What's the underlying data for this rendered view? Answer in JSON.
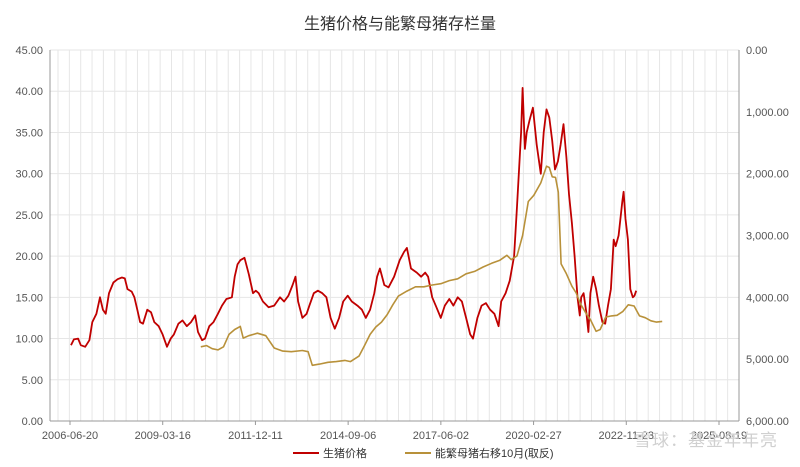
{
  "chart_data": {
    "type": "line",
    "title": "生猪价格与能繁母猪存栏量",
    "x_tick_labels": [
      "2006-06-20",
      "2009-03-16",
      "2011-12-11",
      "2014-09-06",
      "2017-06-02",
      "2020-02-27",
      "2022-11-23",
      "2025-08-19"
    ],
    "x_range": [
      "2006-06-20",
      "2025-08-19"
    ],
    "y_left": {
      "range": [
        0,
        45
      ],
      "ticks": [
        "0.00",
        "5.00",
        "10.00",
        "15.00",
        "20.00",
        "25.00",
        "30.00",
        "35.00",
        "40.00",
        "45.00"
      ]
    },
    "y_right": {
      "range": [
        0,
        6000
      ],
      "inverted": true,
      "ticks": [
        "0.00",
        "1,000.00",
        "2,000.00",
        "3,000.00",
        "4,000.00",
        "5,000.00",
        "6,000.00"
      ]
    },
    "grid": true,
    "legend_position": "bottom",
    "series": [
      {
        "name": "生猪价格",
        "axis": "left",
        "color": "#c00000",
        "points": [
          [
            "2006-07-01",
            9.2
          ],
          [
            "2006-08-01",
            9.9
          ],
          [
            "2006-09-15",
            10.0
          ],
          [
            "2006-10-15",
            9.2
          ],
          [
            "2006-12-01",
            9.0
          ],
          [
            "2007-01-15",
            9.8
          ],
          [
            "2007-02-15",
            12.0
          ],
          [
            "2007-04-01",
            13.0
          ],
          [
            "2007-05-10",
            15.0
          ],
          [
            "2007-06-10",
            13.5
          ],
          [
            "2007-07-10",
            13.0
          ],
          [
            "2007-08-15",
            15.5
          ],
          [
            "2007-10-01",
            16.8
          ],
          [
            "2007-11-15",
            17.2
          ],
          [
            "2008-01-01",
            17.4
          ],
          [
            "2008-02-01",
            17.3
          ],
          [
            "2008-03-01",
            16.0
          ],
          [
            "2008-04-15",
            15.7
          ],
          [
            "2008-05-15",
            15.0
          ],
          [
            "2008-06-15",
            13.5
          ],
          [
            "2008-07-15",
            12.0
          ],
          [
            "2008-08-15",
            11.8
          ],
          [
            "2008-10-01",
            13.5
          ],
          [
            "2008-11-10",
            13.2
          ],
          [
            "2008-12-15",
            12.0
          ],
          [
            "2009-02-01",
            11.5
          ],
          [
            "2009-03-15",
            10.5
          ],
          [
            "2009-05-01",
            9.0
          ],
          [
            "2009-06-10",
            10.0
          ],
          [
            "2009-07-15",
            10.5
          ],
          [
            "2009-09-01",
            11.8
          ],
          [
            "2009-10-15",
            12.2
          ],
          [
            "2009-12-01",
            11.5
          ],
          [
            "2010-01-15",
            12.0
          ],
          [
            "2010-03-01",
            12.8
          ],
          [
            "2010-04-01",
            10.8
          ],
          [
            "2010-05-15",
            9.8
          ],
          [
            "2010-06-15",
            10.0
          ],
          [
            "2010-08-01",
            11.5
          ],
          [
            "2010-09-15",
            12.0
          ],
          [
            "2010-11-01",
            13.0
          ],
          [
            "2010-12-15",
            14.0
          ],
          [
            "2011-02-01",
            14.8
          ],
          [
            "2011-04-01",
            15.0
          ],
          [
            "2011-05-01",
            17.5
          ],
          [
            "2011-06-01",
            19.0
          ],
          [
            "2011-07-01",
            19.5
          ],
          [
            "2011-08-15",
            19.8
          ],
          [
            "2011-10-01",
            17.8
          ],
          [
            "2011-11-15",
            15.5
          ],
          [
            "2011-12-15",
            15.8
          ],
          [
            "2012-01-15",
            15.5
          ],
          [
            "2012-03-01",
            14.5
          ],
          [
            "2012-05-01",
            13.8
          ],
          [
            "2012-07-01",
            14.0
          ],
          [
            "2012-09-01",
            15.0
          ],
          [
            "2012-10-15",
            14.5
          ],
          [
            "2012-12-01",
            15.2
          ],
          [
            "2013-01-15",
            16.5
          ],
          [
            "2013-02-15",
            17.5
          ],
          [
            "2013-03-15",
            14.5
          ],
          [
            "2013-05-01",
            12.5
          ],
          [
            "2013-06-15",
            13.0
          ],
          [
            "2013-07-15",
            14.0
          ],
          [
            "2013-09-01",
            15.5
          ],
          [
            "2013-10-15",
            15.8
          ],
          [
            "2013-12-01",
            15.5
          ],
          [
            "2014-01-15",
            15.0
          ],
          [
            "2014-03-01",
            12.5
          ],
          [
            "2014-04-15",
            11.2
          ],
          [
            "2014-06-01",
            12.5
          ],
          [
            "2014-07-15",
            14.5
          ],
          [
            "2014-09-01",
            15.2
          ],
          [
            "2014-10-15",
            14.5
          ],
          [
            "2014-12-15",
            14.0
          ],
          [
            "2015-02-01",
            13.5
          ],
          [
            "2015-03-15",
            12.5
          ],
          [
            "2015-05-01",
            13.5
          ],
          [
            "2015-06-15",
            15.5
          ],
          [
            "2015-07-15",
            17.5
          ],
          [
            "2015-08-15",
            18.5
          ],
          [
            "2015-10-01",
            16.5
          ],
          [
            "2015-11-15",
            16.2
          ],
          [
            "2016-01-15",
            17.5
          ],
          [
            "2016-03-15",
            19.5
          ],
          [
            "2016-05-01",
            20.5
          ],
          [
            "2016-06-01",
            21.0
          ],
          [
            "2016-07-15",
            18.5
          ],
          [
            "2016-09-15",
            18.0
          ],
          [
            "2016-11-01",
            17.5
          ],
          [
            "2016-12-15",
            18.0
          ],
          [
            "2017-01-15",
            17.5
          ],
          [
            "2017-03-01",
            15.0
          ],
          [
            "2017-04-15",
            13.8
          ],
          [
            "2017-06-01",
            12.5
          ],
          [
            "2017-07-15",
            14.0
          ],
          [
            "2017-09-01",
            14.8
          ],
          [
            "2017-10-15",
            14.0
          ],
          [
            "2017-12-01",
            15.0
          ],
          [
            "2018-01-15",
            14.5
          ],
          [
            "2018-03-01",
            12.5
          ],
          [
            "2018-04-15",
            10.5
          ],
          [
            "2018-05-15",
            10.0
          ],
          [
            "2018-07-01",
            12.5
          ],
          [
            "2018-08-15",
            14.0
          ],
          [
            "2018-10-01",
            14.3
          ],
          [
            "2018-11-15",
            13.5
          ],
          [
            "2019-01-01",
            13.0
          ],
          [
            "2019-02-15",
            11.5
          ],
          [
            "2019-03-15",
            14.5
          ],
          [
            "2019-05-01",
            15.5
          ],
          [
            "2019-06-15",
            17.0
          ],
          [
            "2019-08-01",
            20.0
          ],
          [
            "2019-09-01",
            26.0
          ],
          [
            "2019-10-15",
            35.0
          ],
          [
            "2019-11-01",
            40.4
          ],
          [
            "2019-11-25",
            33.0
          ],
          [
            "2019-12-15",
            35.0
          ],
          [
            "2020-01-15",
            36.5
          ],
          [
            "2020-02-20",
            38.0
          ],
          [
            "2020-04-01",
            33.5
          ],
          [
            "2020-05-15",
            30.0
          ],
          [
            "2020-06-15",
            35.0
          ],
          [
            "2020-07-15",
            37.8
          ],
          [
            "2020-08-15",
            36.8
          ],
          [
            "2020-09-15",
            34.0
          ],
          [
            "2020-10-15",
            30.5
          ],
          [
            "2020-11-15",
            31.5
          ],
          [
            "2020-12-15",
            33.5
          ],
          [
            "2021-01-15",
            36.0
          ],
          [
            "2021-02-15",
            32.0
          ],
          [
            "2021-03-15",
            27.5
          ],
          [
            "2021-04-15",
            24.0
          ],
          [
            "2021-05-15",
            20.0
          ],
          [
            "2021-06-15",
            15.0
          ],
          [
            "2021-07-10",
            12.8
          ],
          [
            "2021-07-25",
            15.0
          ],
          [
            "2021-08-20",
            15.5
          ],
          [
            "2021-09-20",
            13.0
          ],
          [
            "2021-10-10",
            10.8
          ],
          [
            "2021-11-01",
            15.5
          ],
          [
            "2021-12-01",
            17.5
          ],
          [
            "2022-01-01",
            16.0
          ],
          [
            "2022-02-01",
            14.0
          ],
          [
            "2022-03-10",
            12.0
          ],
          [
            "2022-04-10",
            11.8
          ],
          [
            "2022-05-10",
            14.0
          ],
          [
            "2022-06-10",
            16.0
          ],
          [
            "2022-07-10",
            22.0
          ],
          [
            "2022-08-01",
            21.2
          ],
          [
            "2022-09-01",
            22.5
          ],
          [
            "2022-10-10",
            26.5
          ],
          [
            "2022-10-25",
            27.8
          ],
          [
            "2022-11-15",
            24.5
          ],
          [
            "2022-12-10",
            22.0
          ],
          [
            "2023-01-05",
            16.0
          ],
          [
            "2023-02-01",
            15.0
          ],
          [
            "2023-02-20",
            15.2
          ],
          [
            "2023-03-10",
            15.8
          ]
        ]
      },
      {
        "name": "能繁母猪右移10月(取反)",
        "axis": "right",
        "color": "#b8913a",
        "points": [
          [
            "2010-05-01",
            4800
          ],
          [
            "2010-07-01",
            4780
          ],
          [
            "2010-09-01",
            4830
          ],
          [
            "2010-11-01",
            4850
          ],
          [
            "2011-01-01",
            4800
          ],
          [
            "2011-03-01",
            4600
          ],
          [
            "2011-05-01",
            4520
          ],
          [
            "2011-07-01",
            4470
          ],
          [
            "2011-08-01",
            4660
          ],
          [
            "2011-10-01",
            4620
          ],
          [
            "2012-01-01",
            4580
          ],
          [
            "2012-04-01",
            4620
          ],
          [
            "2012-07-01",
            4820
          ],
          [
            "2012-10-01",
            4870
          ],
          [
            "2013-01-01",
            4880
          ],
          [
            "2013-05-01",
            4860
          ],
          [
            "2013-07-01",
            4880
          ],
          [
            "2013-08-15",
            5100
          ],
          [
            "2013-11-01",
            5080
          ],
          [
            "2014-02-01",
            5050
          ],
          [
            "2014-05-01",
            5040
          ],
          [
            "2014-08-01",
            5020
          ],
          [
            "2014-10-01",
            5040
          ],
          [
            "2015-01-01",
            4950
          ],
          [
            "2015-03-01",
            4780
          ],
          [
            "2015-05-01",
            4600
          ],
          [
            "2015-07-01",
            4480
          ],
          [
            "2015-09-01",
            4400
          ],
          [
            "2015-11-01",
            4280
          ],
          [
            "2016-01-01",
            4120
          ],
          [
            "2016-03-01",
            3980
          ],
          [
            "2016-06-01",
            3900
          ],
          [
            "2016-09-01",
            3830
          ],
          [
            "2016-12-01",
            3830
          ],
          [
            "2017-03-01",
            3800
          ],
          [
            "2017-06-01",
            3780
          ],
          [
            "2017-09-01",
            3730
          ],
          [
            "2017-12-01",
            3700
          ],
          [
            "2018-03-01",
            3620
          ],
          [
            "2018-06-01",
            3580
          ],
          [
            "2018-09-01",
            3510
          ],
          [
            "2018-12-01",
            3450
          ],
          [
            "2019-03-01",
            3400
          ],
          [
            "2019-05-15",
            3320
          ],
          [
            "2019-07-01",
            3390
          ],
          [
            "2019-09-01",
            3330
          ],
          [
            "2019-11-01",
            3000
          ],
          [
            "2020-01-01",
            2450
          ],
          [
            "2020-03-01",
            2350
          ],
          [
            "2020-05-15",
            2150
          ],
          [
            "2020-07-15",
            1880
          ],
          [
            "2020-08-15",
            1900
          ],
          [
            "2020-09-15",
            2050
          ],
          [
            "2020-10-20",
            2060
          ],
          [
            "2020-11-20",
            2300
          ],
          [
            "2020-12-20",
            3460
          ],
          [
            "2021-02-15",
            3620
          ],
          [
            "2021-04-15",
            3820
          ],
          [
            "2021-06-01",
            3930
          ],
          [
            "2021-07-15",
            4100
          ],
          [
            "2021-09-15",
            4260
          ],
          [
            "2021-11-01",
            4360
          ],
          [
            "2022-01-01",
            4550
          ],
          [
            "2022-02-15",
            4520
          ],
          [
            "2022-04-15",
            4320
          ],
          [
            "2022-06-15",
            4300
          ],
          [
            "2022-08-15",
            4290
          ],
          [
            "2022-10-15",
            4230
          ],
          [
            "2022-12-15",
            4120
          ],
          [
            "2023-02-15",
            4140
          ],
          [
            "2023-04-15",
            4300
          ],
          [
            "2023-06-15",
            4330
          ],
          [
            "2023-08-15",
            4380
          ],
          [
            "2023-10-15",
            4400
          ],
          [
            "2023-12-15",
            4390
          ]
        ]
      }
    ]
  },
  "watermark": "雪球：基金年年亮"
}
